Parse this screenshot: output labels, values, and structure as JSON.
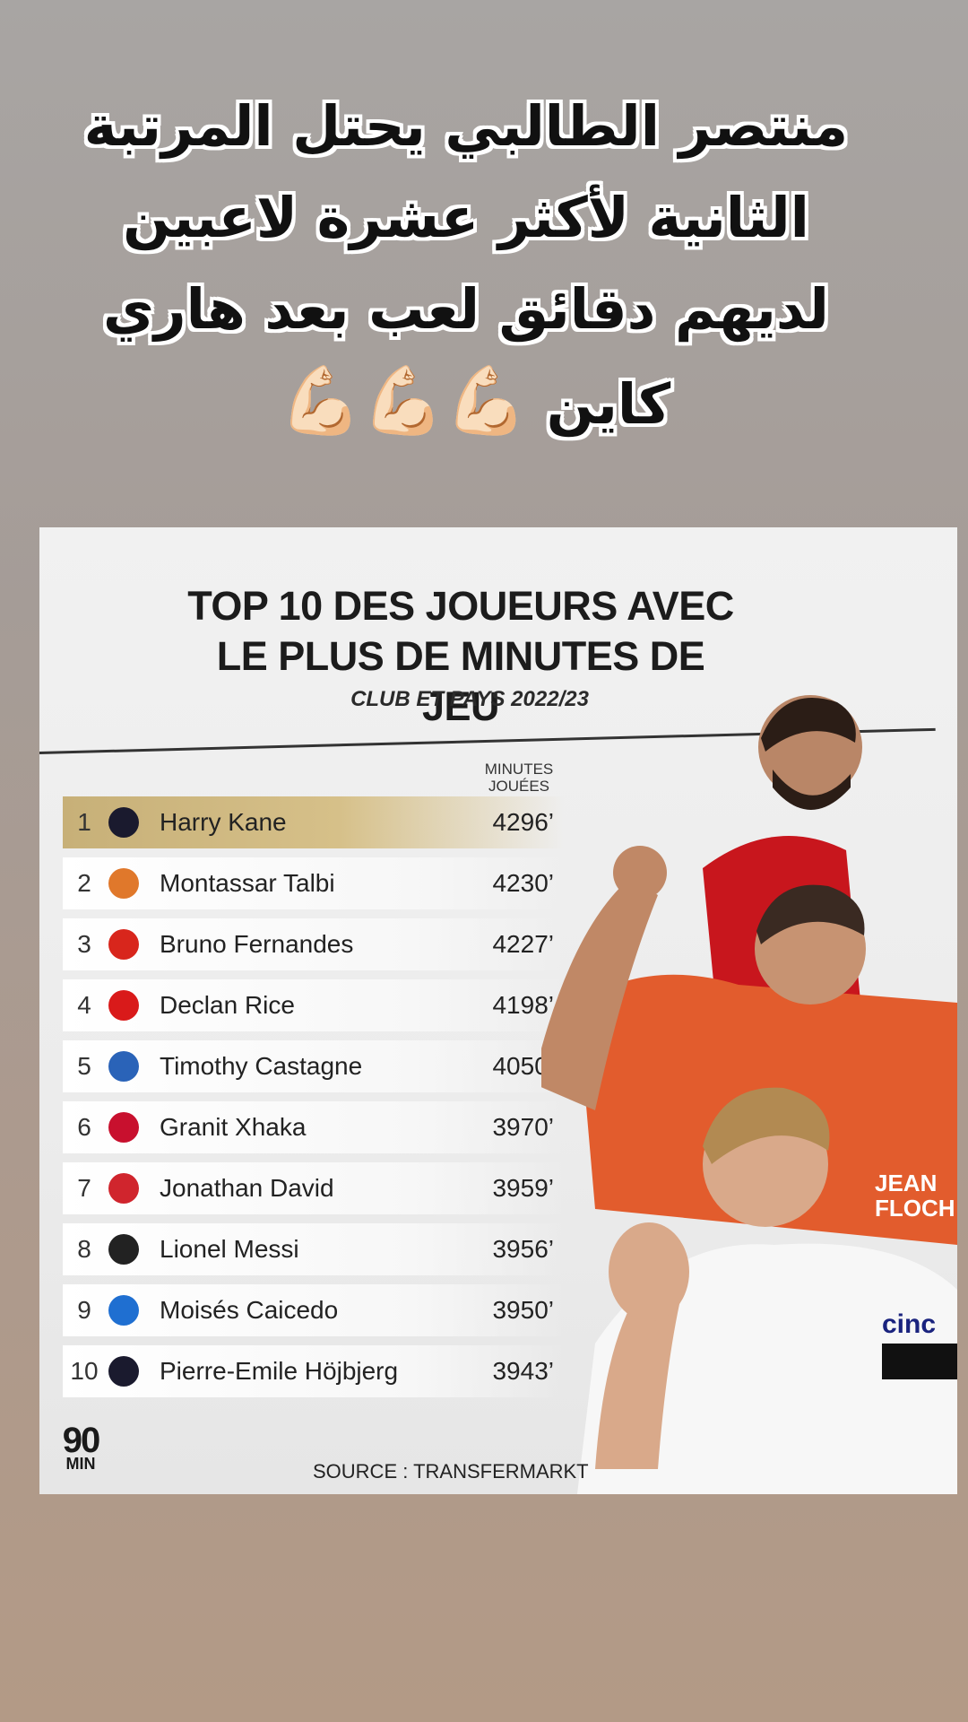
{
  "caption": {
    "line1": "منتصر الطالبي يحتل المرتبة",
    "line2": "الثانية لأكثر عشرة لاعبين",
    "line3": "لديهم دقائق لعب بعد هاري",
    "line4": "كاين",
    "emojis": "💪🏻💪🏻💪🏻"
  },
  "card": {
    "title_line1": "TOP 10 DES JOUEURS AVEC",
    "title_line2": "LE PLUS DE MINUTES DE JEU",
    "subtitle": "CLUB ET PAYS 2022/23",
    "column_header_line1": "MINUTES",
    "column_header_line2": "JOUÉES",
    "source": "SOURCE : TRANSFERMARKT",
    "logo_number": "90",
    "logo_text": "MIN"
  },
  "players": [
    {
      "rank": "1",
      "name": "Harry Kane",
      "minutes": "4296’",
      "crest_color": "#1a1a2e"
    },
    {
      "rank": "2",
      "name": "Montassar Talbi",
      "minutes": "4230’",
      "crest_color": "#e0782b"
    },
    {
      "rank": "3",
      "name": "Bruno Fernandes",
      "minutes": "4227’",
      "crest_color": "#d8261c"
    },
    {
      "rank": "4",
      "name": "Declan Rice",
      "minutes": "4198’",
      "crest_color": "#d91a1a"
    },
    {
      "rank": "5",
      "name": "Timothy Castagne",
      "minutes": "4050’",
      "crest_color": "#2a63b8"
    },
    {
      "rank": "6",
      "name": "Granit Xhaka",
      "minutes": "3970’",
      "crest_color": "#c8102e"
    },
    {
      "rank": "7",
      "name": "Jonathan David",
      "minutes": "3959’",
      "crest_color": "#d0252d"
    },
    {
      "rank": "8",
      "name": "Lionel Messi",
      "minutes": "3956’",
      "crest_color": "#222222"
    },
    {
      "rank": "9",
      "name": "Moisés Caicedo",
      "minutes": "3950’",
      "crest_color": "#1f6fd1"
    },
    {
      "rank": "10",
      "name": "Pierre-Emile Höjbjerg",
      "minutes": "3943’",
      "crest_color": "#1a1a2e"
    }
  ]
}
